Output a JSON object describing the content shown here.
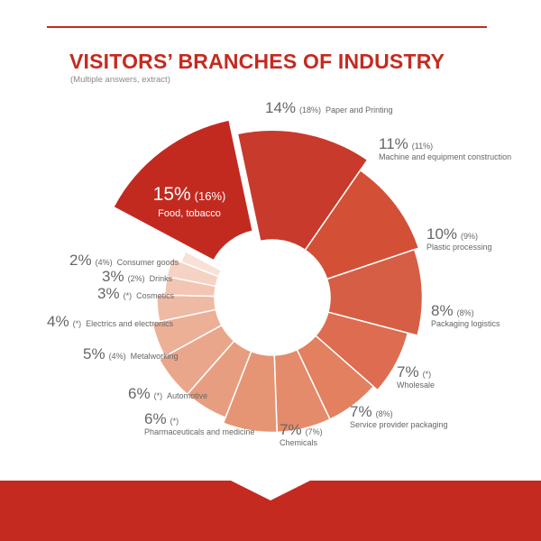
{
  "header": {
    "title": "VISITORS’ BRANCHES OF INDUSTRY",
    "subtitle": "(Multiple answers, extract)"
  },
  "colors": {
    "accent": "#c52a20",
    "text_gray": "#666666",
    "light_gray": "#8a8a8a"
  },
  "chart_data": {
    "type": "pie",
    "variant": "donut",
    "subtitle": "(Multiple answers, extract)",
    "title": "VISITORS’ BRANCHES OF INDUSTRY",
    "slices": [
      {
        "label": "Food, tobacco",
        "value": 15,
        "display": "15%",
        "previous": "(16%)",
        "color": "#c22a20",
        "exploded": true
      },
      {
        "label": "Paper and Printing",
        "value": 14,
        "display": "14%",
        "previous": "(18%)",
        "color": "#c83a2b"
      },
      {
        "label": "Machine and equipment construction",
        "value": 11,
        "display": "11%",
        "previous": "(11%)",
        "color": "#d35037"
      },
      {
        "label": "Plastic processing",
        "value": 10,
        "display": "10%",
        "previous": "(9%)",
        "color": "#d65e44"
      },
      {
        "label": "Packaging logistics",
        "value": 8,
        "display": "8%",
        "previous": "(8%)",
        "color": "#dd6c50"
      },
      {
        "label": "Wholesale",
        "value": 7,
        "display": "7%",
        "previous": "(*)",
        "color": "#e2805f"
      },
      {
        "label": "Service provider packaging",
        "value": 7,
        "display": "7%",
        "previous": "(8%)",
        "color": "#e48b6b"
      },
      {
        "label": "Chemicals",
        "value": 7,
        "display": "7%",
        "previous": "(7%)",
        "color": "#e59474"
      },
      {
        "label": "Pharmaceuticals and medicine",
        "value": 6,
        "display": "6%",
        "previous": "(*)",
        "color": "#e79e80"
      },
      {
        "label": "Automotive",
        "value": 6,
        "display": "6%",
        "previous": "(*)",
        "color": "#eaa68a"
      },
      {
        "label": "Metalworking",
        "value": 5,
        "display": "5%",
        "previous": "(4%)",
        "color": "#ecb096"
      },
      {
        "label": "Electrics and electronics",
        "value": 4,
        "display": "4%",
        "previous": "(*)",
        "color": "#efbaa3"
      },
      {
        "label": "Cosmetics",
        "value": 3,
        "display": "3%",
        "previous": "(*)",
        "color": "#f2c6b2"
      },
      {
        "label": "Drinks",
        "value": 3,
        "display": "3%",
        "previous": "(2%)",
        "color": "#f5d3c4"
      },
      {
        "label": "Consumer goods",
        "value": 2,
        "display": "2%",
        "previous": "(4%)",
        "color": "#f8e2d8"
      }
    ]
  }
}
